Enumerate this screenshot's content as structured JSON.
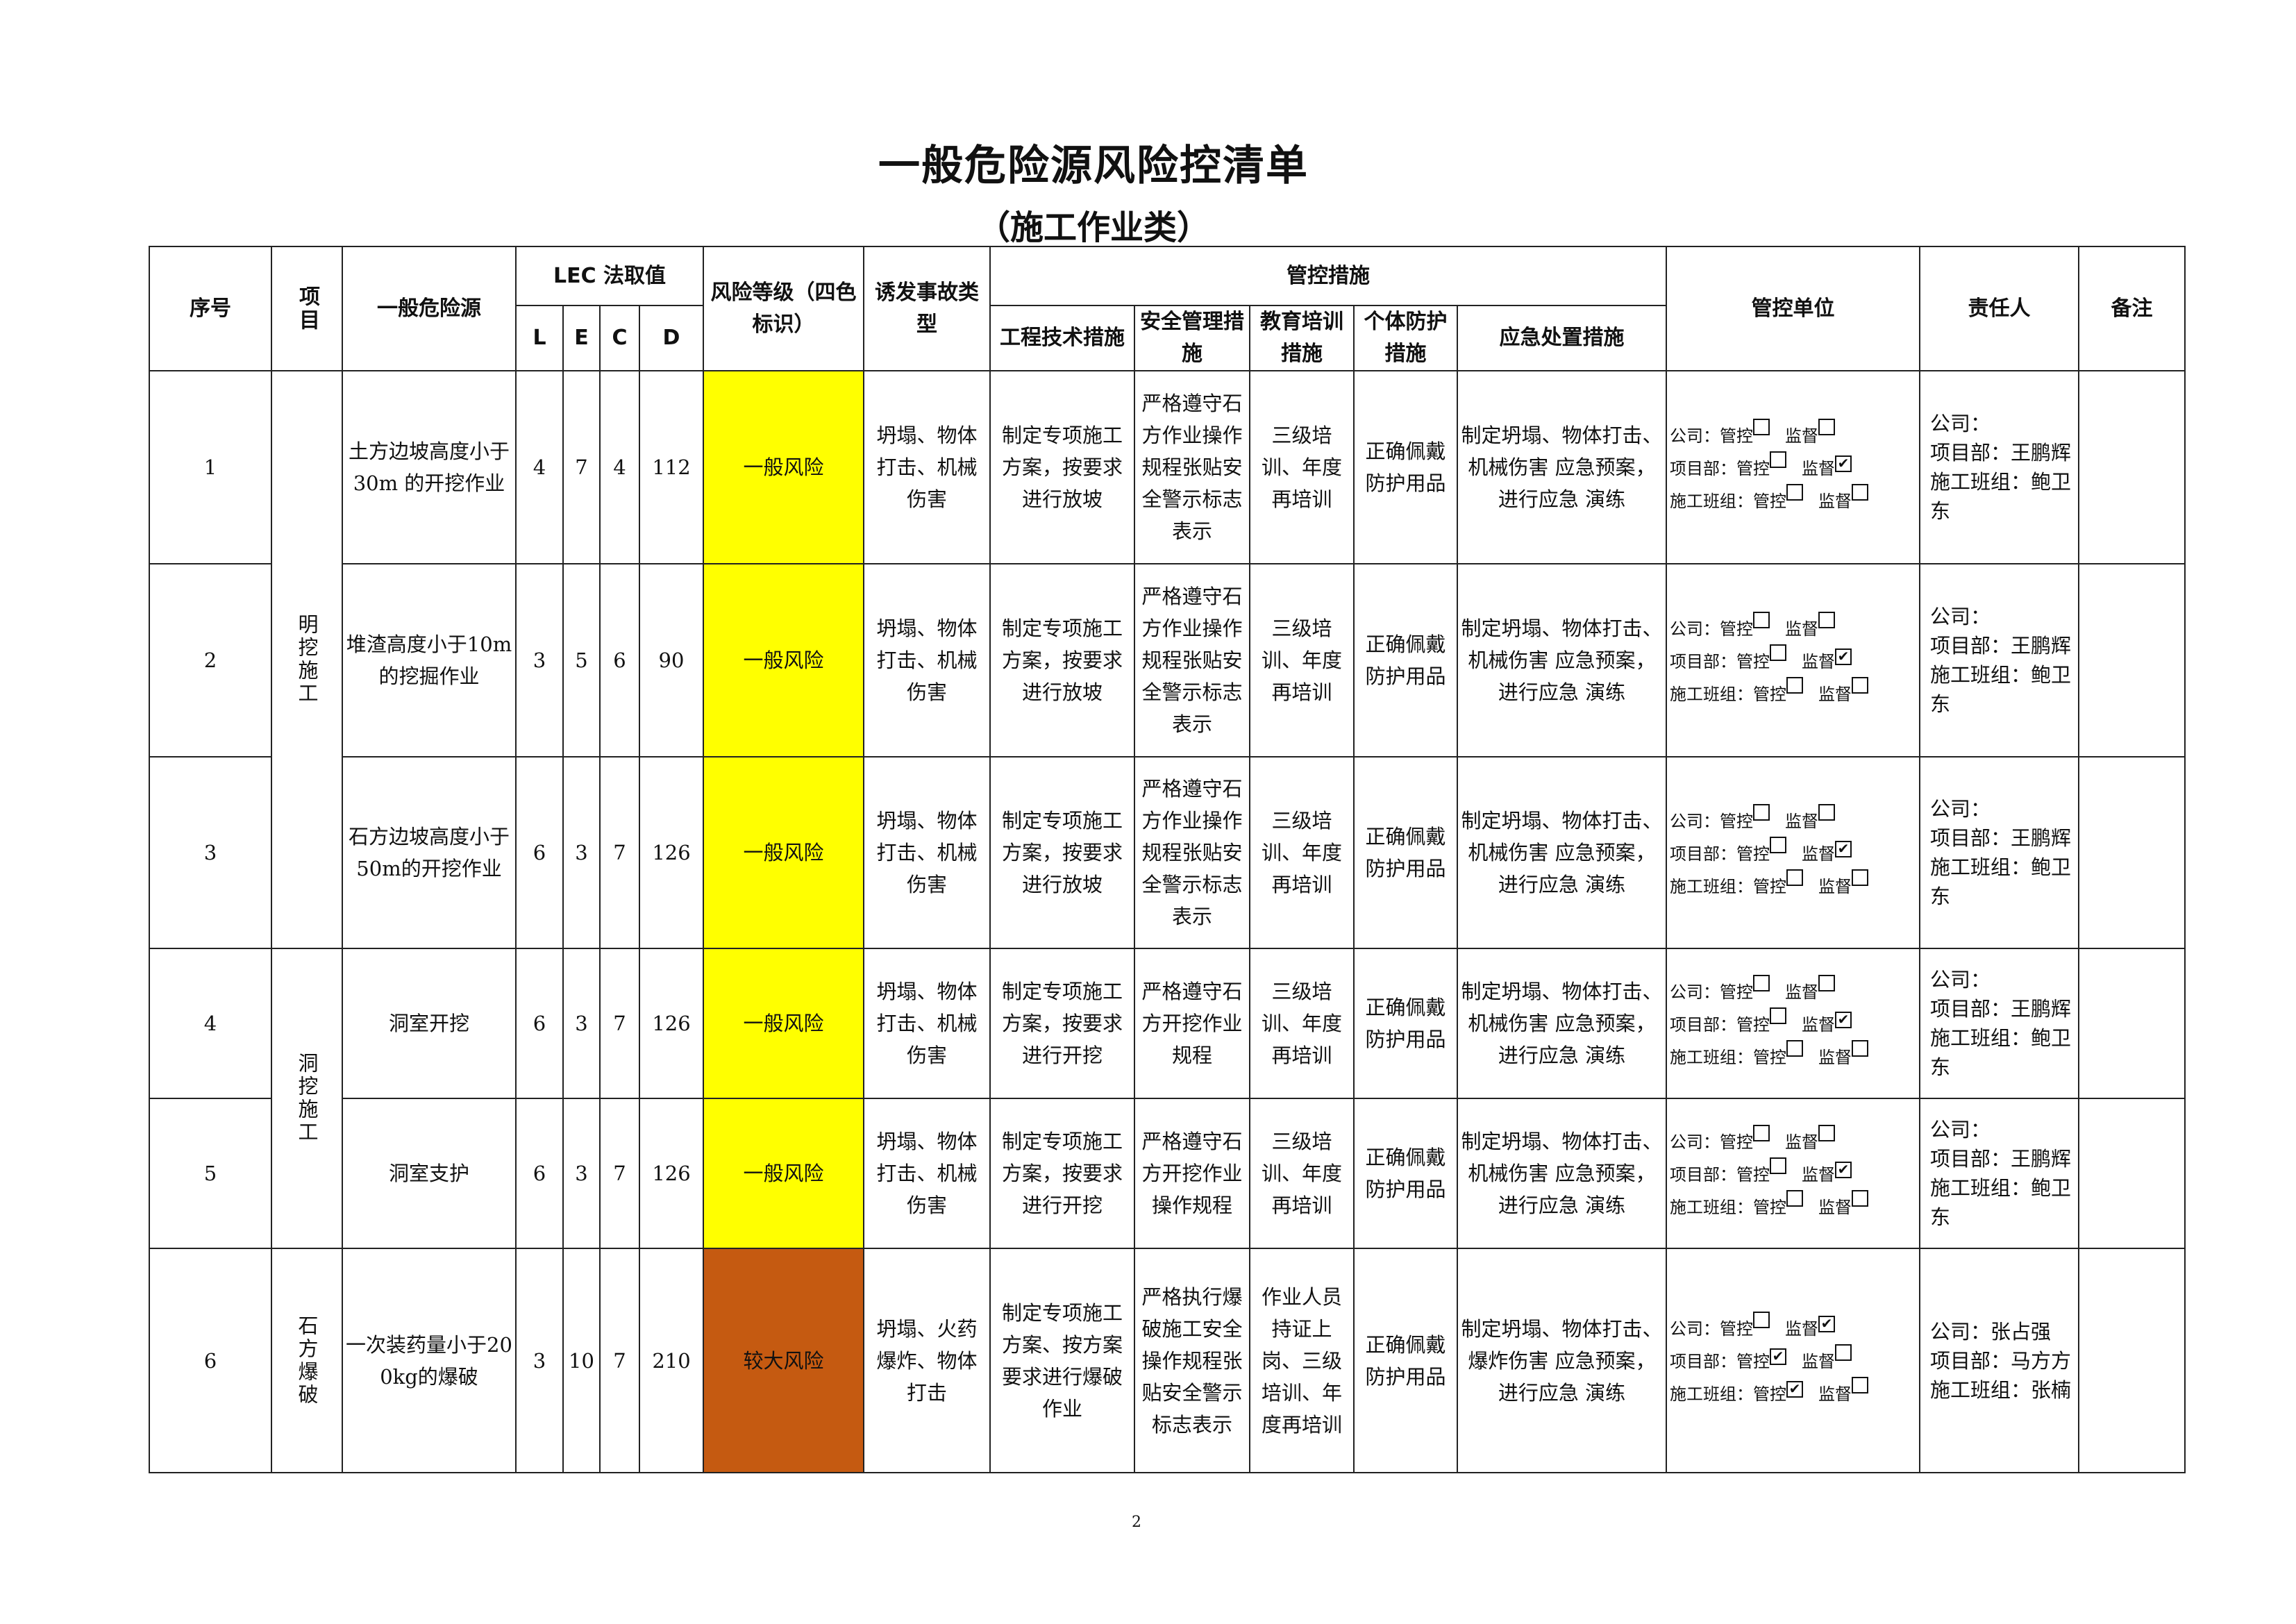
{
  "title": "一般危险源风险控清单",
  "subtitle": "（施工作业类）",
  "page_number": "2",
  "headers": {
    "seq": "序号",
    "section": "项目",
    "hazard": "一般危险源",
    "lec": "LEC 法取值",
    "L": "L",
    "E": "E",
    "C": "C",
    "D": "D",
    "risk_level": "风险等级（四色标识）",
    "accident": "诱发事故类型",
    "measures": "管控措施",
    "engineering": "工程技术措施",
    "safety": "安全管理措施",
    "education": "教育培训措施",
    "ppe": "个体防护措施",
    "emergency": "应急处置措施",
    "unit": "管控单位",
    "responsible": "责任人",
    "remarks": "备注"
  },
  "control_labels": {
    "control": "管控",
    "supervise": "监督"
  },
  "colors": {
    "一般风险": "#FFFF00",
    "较大风险": "#C55A11"
  },
  "sections": [
    {
      "name": "明挖施工",
      "rows": 3
    },
    {
      "name": "洞挖施工",
      "rows": 2
    },
    {
      "name": "石方爆破",
      "rows": 1
    }
  ],
  "rows": [
    {
      "seq": "1",
      "hazard": "土方边坡高度小于30m 的开挖作业",
      "L": "4",
      "E": "7",
      "C": "4",
      "D": "112",
      "risk": "一般风险",
      "accident": "坍塌、物体打击、机械伤害",
      "engineering": "制定专项施工方案，按要求进行放坡",
      "safety": "严格遵守石方作业操作规程张贴安全警示标志表示",
      "education": "三级培训、年度再培训",
      "ppe": "正确佩戴防护用品",
      "emergency": "制定坍塌、物体打击、机械伤害 应急预案，进行应急 演练",
      "units": [
        {
          "label": "公司：",
          "control": false,
          "supervise": false
        },
        {
          "label": "项目部：",
          "control": false,
          "supervise": true
        },
        {
          "label": "施工班组：",
          "control": false,
          "supervise": false
        }
      ],
      "responsible": [
        "公司：",
        "项目部：王鹏辉",
        "施工班组：鲍卫东"
      ],
      "remarks": ""
    },
    {
      "seq": "2",
      "hazard": "堆渣高度小于10m的挖掘作业",
      "L": "3",
      "E": "5",
      "C": "6",
      "D": "90",
      "risk": "一般风险",
      "accident": "坍塌、物体打击、机械伤害",
      "engineering": "制定专项施工方案，按要求进行放坡",
      "safety": "严格遵守石方作业操作规程张贴安全警示标志表示",
      "education": "三级培训、年度再培训",
      "ppe": "正确佩戴防护用品",
      "emergency": "制定坍塌、物体打击、机械伤害 应急预案，进行应急 演练",
      "units": [
        {
          "label": "公司：",
          "control": false,
          "supervise": false
        },
        {
          "label": "项目部：",
          "control": false,
          "supervise": true
        },
        {
          "label": "施工班组：",
          "control": false,
          "supervise": false
        }
      ],
      "responsible": [
        "公司：",
        "项目部：王鹏辉",
        "施工班组：鲍卫东"
      ],
      "remarks": ""
    },
    {
      "seq": "3",
      "hazard": "石方边坡高度小于50m的开挖作业",
      "L": "6",
      "E": "3",
      "C": "7",
      "D": "126",
      "risk": "一般风险",
      "accident": "坍塌、物体打击、机械伤害",
      "engineering": "制定专项施工方案，按要求进行放坡",
      "safety": "严格遵守石方作业操作规程张贴安全警示标志表示",
      "education": "三级培训、年度再培训",
      "ppe": "正确佩戴防护用品",
      "emergency": "制定坍塌、物体打击、机械伤害 应急预案，进行应急 演练",
      "units": [
        {
          "label": "公司：",
          "control": false,
          "supervise": false
        },
        {
          "label": "项目部：",
          "control": false,
          "supervise": true
        },
        {
          "label": "施工班组：",
          "control": false,
          "supervise": false
        }
      ],
      "responsible": [
        "公司：",
        "项目部：王鹏辉",
        "施工班组：鲍卫东"
      ],
      "remarks": ""
    },
    {
      "seq": "4",
      "hazard": "洞室开挖",
      "L": "6",
      "E": "3",
      "C": "7",
      "D": "126",
      "risk": "一般风险",
      "accident": "坍塌、物体打击、机械伤害",
      "engineering": "制定专项施工方案，按要求进行开挖",
      "safety": "严格遵守石方开挖作业规程",
      "education": "三级培训、年度再培训",
      "ppe": "正确佩戴防护用品",
      "emergency": "制定坍塌、物体打击、机械伤害 应急预案，进行应急 演练",
      "units": [
        {
          "label": "公司：",
          "control": false,
          "supervise": false
        },
        {
          "label": "项目部：",
          "control": false,
          "supervise": true
        },
        {
          "label": "施工班组：",
          "control": false,
          "supervise": false
        }
      ],
      "responsible": [
        "公司：",
        "项目部：王鹏辉",
        "施工班组：鲍卫东"
      ],
      "remarks": ""
    },
    {
      "seq": "5",
      "hazard": "洞室支护",
      "L": "6",
      "E": "3",
      "C": "7",
      "D": "126",
      "risk": "一般风险",
      "accident": "坍塌、物体打击、机械伤害",
      "engineering": "制定专项施工方案，按要求进行开挖",
      "safety": "严格遵守石方开挖作业操作规程",
      "education": "三级培训、年度再培训",
      "ppe": "正确佩戴防护用品",
      "emergency": "制定坍塌、物体打击、机械伤害 应急预案，进行应急 演练",
      "units": [
        {
          "label": "公司：",
          "control": false,
          "supervise": false
        },
        {
          "label": "项目部：",
          "control": false,
          "supervise": true
        },
        {
          "label": "施工班组：",
          "control": false,
          "supervise": false
        }
      ],
      "responsible": [
        "公司：",
        "项目部：王鹏辉",
        "施工班组：鲍卫东"
      ],
      "remarks": ""
    },
    {
      "seq": "6",
      "hazard": "一次装药量小于200kg的爆破",
      "L": "3",
      "E": "10",
      "C": "7",
      "D": "210",
      "risk": "较大风险",
      "accident": "坍塌、火药爆炸、物体打击",
      "engineering": "制定专项施工方案、按方案要求进行爆破作业",
      "safety": "严格执行爆破施工安全操作规程张贴安全警示标志表示",
      "education": "作业人员持证上岗、三级培训、年度再培训",
      "ppe": "正确佩戴防护用品",
      "emergency": "制定坍塌、物体打击、爆炸伤害 应急预案，进行应急 演练",
      "units": [
        {
          "label": "公司：",
          "control": false,
          "supervise": true
        },
        {
          "label": "项目部：",
          "control": true,
          "supervise": false
        },
        {
          "label": "施工班组：",
          "control": true,
          "supervise": false
        }
      ],
      "responsible": [
        "公司：张占强",
        "项目部：马方方",
        "施工班组：张楠"
      ],
      "remarks": ""
    }
  ]
}
